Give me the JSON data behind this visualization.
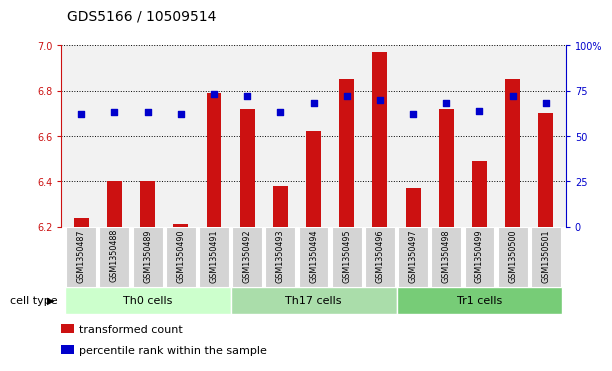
{
  "title": "GDS5166 / 10509514",
  "samples": [
    "GSM1350487",
    "GSM1350488",
    "GSM1350489",
    "GSM1350490",
    "GSM1350491",
    "GSM1350492",
    "GSM1350493",
    "GSM1350494",
    "GSM1350495",
    "GSM1350496",
    "GSM1350497",
    "GSM1350498",
    "GSM1350499",
    "GSM1350500",
    "GSM1350501"
  ],
  "bar_values": [
    6.24,
    6.4,
    6.4,
    6.21,
    6.79,
    6.72,
    6.38,
    6.62,
    6.85,
    6.97,
    6.37,
    6.72,
    6.49,
    6.85,
    6.7
  ],
  "dot_values_pct": [
    62,
    63,
    63,
    62,
    73,
    72,
    63,
    68,
    72,
    70,
    62,
    68,
    64,
    72,
    68
  ],
  "ylim_left": [
    6.2,
    7.0
  ],
  "ylim_right": [
    0,
    100
  ],
  "yticks_left": [
    6.2,
    6.4,
    6.6,
    6.8,
    7.0
  ],
  "yticks_right": [
    0,
    25,
    50,
    75,
    100
  ],
  "ytick_labels_right": [
    "0",
    "25",
    "50",
    "75",
    "100%"
  ],
  "cell_groups": [
    {
      "label": "Th0 cells",
      "start": 0,
      "end": 4
    },
    {
      "label": "Th17 cells",
      "start": 5,
      "end": 9
    },
    {
      "label": "Tr1 cells",
      "start": 10,
      "end": 14
    }
  ],
  "group_colors": [
    "#ccffcc",
    "#aaddaa",
    "#77cc77"
  ],
  "bar_color": "#cc1111",
  "dot_color": "#0000cc",
  "bar_width": 0.45,
  "bg_color": "#ffffff",
  "plot_bg_color": "#f2f2f2",
  "tick_box_color": "#d4d4d4",
  "cell_type_label": "cell type",
  "legend_bar_label": "transformed count",
  "legend_dot_label": "percentile rank within the sample",
  "title_fontsize": 10,
  "tick_fontsize": 7,
  "label_fontsize": 8,
  "axis_color_left": "#cc1111",
  "axis_color_right": "#0000cc"
}
